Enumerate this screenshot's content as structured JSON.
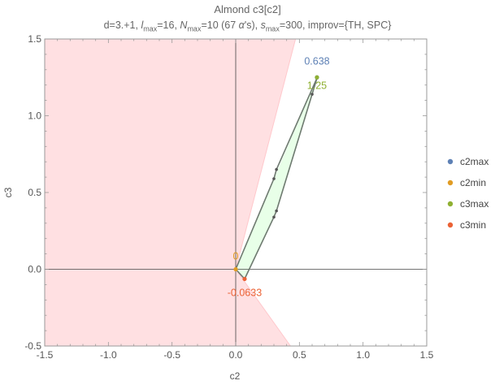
{
  "chart_data": {
    "type": "scatter",
    "title": "Almond c3[c2]",
    "subtitle": {
      "prefix": "d=3.+1, ",
      "l_sym": "l",
      "l_sub": "max",
      "l_val": "=16, ",
      "n_sym": "N",
      "n_sub": "max",
      "n_val": "=10 (67 ",
      "alpha": "α",
      "n_tail": "'s), ",
      "s_sym": "s",
      "s_sub": "max",
      "s_val": "=300, improv={TH, SPC}"
    },
    "xlabel": "c2",
    "ylabel": "c3",
    "xlim": [
      -1.5,
      1.5
    ],
    "ylim": [
      -0.5,
      1.5
    ],
    "xticks": [
      "-1.5",
      "-1.0",
      "-0.5",
      "0.0",
      "0.5",
      "1.0",
      "1.5"
    ],
    "yticks": [
      "-0.5",
      "0.0",
      "0.5",
      "1.0",
      "1.5"
    ],
    "excluded_region": [
      [
        -1.5,
        -0.5
      ],
      [
        -1.5,
        1.5
      ],
      [
        0.47,
        1.5
      ],
      [
        0.0,
        0.0
      ],
      [
        0.43,
        -0.5
      ]
    ],
    "allowed_region": [
      [
        0.0,
        0.0
      ],
      [
        0.3,
        0.59
      ],
      [
        0.64,
        1.25
      ],
      [
        0.6,
        1.14
      ],
      [
        0.32,
        0.38
      ],
      [
        0.07,
        -0.063
      ]
    ],
    "hull_vertices": [
      [
        0.0,
        0.0
      ],
      [
        0.3,
        0.59
      ],
      [
        0.32,
        0.65
      ],
      [
        0.64,
        1.25
      ],
      [
        0.6,
        1.14
      ],
      [
        0.32,
        0.38
      ],
      [
        0.3,
        0.34
      ],
      [
        0.07,
        -0.063
      ]
    ],
    "series": [
      {
        "name": "c2max",
        "color": "#5E81B5",
        "point": [
          0.638,
          1.25
        ],
        "label": "0.638"
      },
      {
        "name": "c2min",
        "color": "#E19C24",
        "point": [
          0.0,
          0.0
        ],
        "label": "0"
      },
      {
        "name": "c3max",
        "color": "#8FB032",
        "point": [
          0.638,
          1.25
        ],
        "label": "1.25"
      },
      {
        "name": "c3min",
        "color": "#EB6235",
        "point": [
          0.07,
          -0.0633
        ],
        "label": "-0.0633"
      }
    ],
    "legend_position": "right",
    "colors": {
      "excluded": "#FFE0E2",
      "excluded_edge": "#FFC8CC",
      "allowed": "#E8FFE8",
      "hull": "#6E7A70"
    }
  }
}
